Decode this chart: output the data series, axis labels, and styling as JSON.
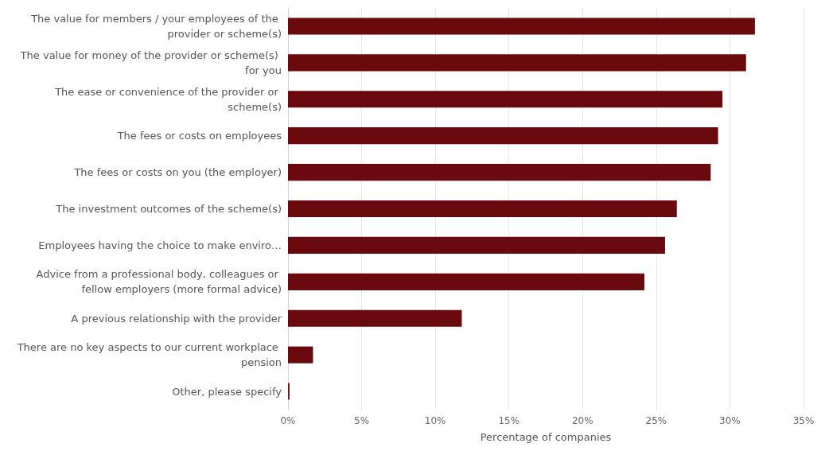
{
  "chart_data": {
    "type": "bar",
    "orientation": "horizontal",
    "xlabel": "Percentage of companies",
    "categories": [
      "The value for members / your employees of the provider or scheme(s)",
      "The value for money of the provider or scheme(s) for you",
      "The ease or convenience of the provider or scheme(s)",
      "The fees or costs on employees",
      "The fees or costs on you (the employer)",
      "The investment outcomes of the scheme(s)",
      "Employees having the choice to make enviro…",
      "Advice from a professional body, colleagues or fellow employers (more formal advice)",
      "A previous relationship with the provider",
      "There are no key aspects to our current workplace pension",
      "Other, please specify"
    ],
    "values": [
      31.7,
      31.1,
      29.5,
      29.2,
      28.7,
      26.4,
      25.6,
      24.2,
      11.8,
      1.7,
      0.1
    ],
    "color": "#6b0a0e",
    "xlim": [
      0,
      35
    ],
    "xticks": [
      {
        "value": 0,
        "label": "0%"
      },
      {
        "value": 5,
        "label": "5%"
      },
      {
        "value": 10,
        "label": "10%"
      },
      {
        "value": 15,
        "label": "15%"
      },
      {
        "value": 20,
        "label": "20%"
      },
      {
        "value": 25,
        "label": "25%"
      },
      {
        "value": 30,
        "label": "30%"
      },
      {
        "value": 35,
        "label": "35%"
      }
    ],
    "grid": "x"
  }
}
